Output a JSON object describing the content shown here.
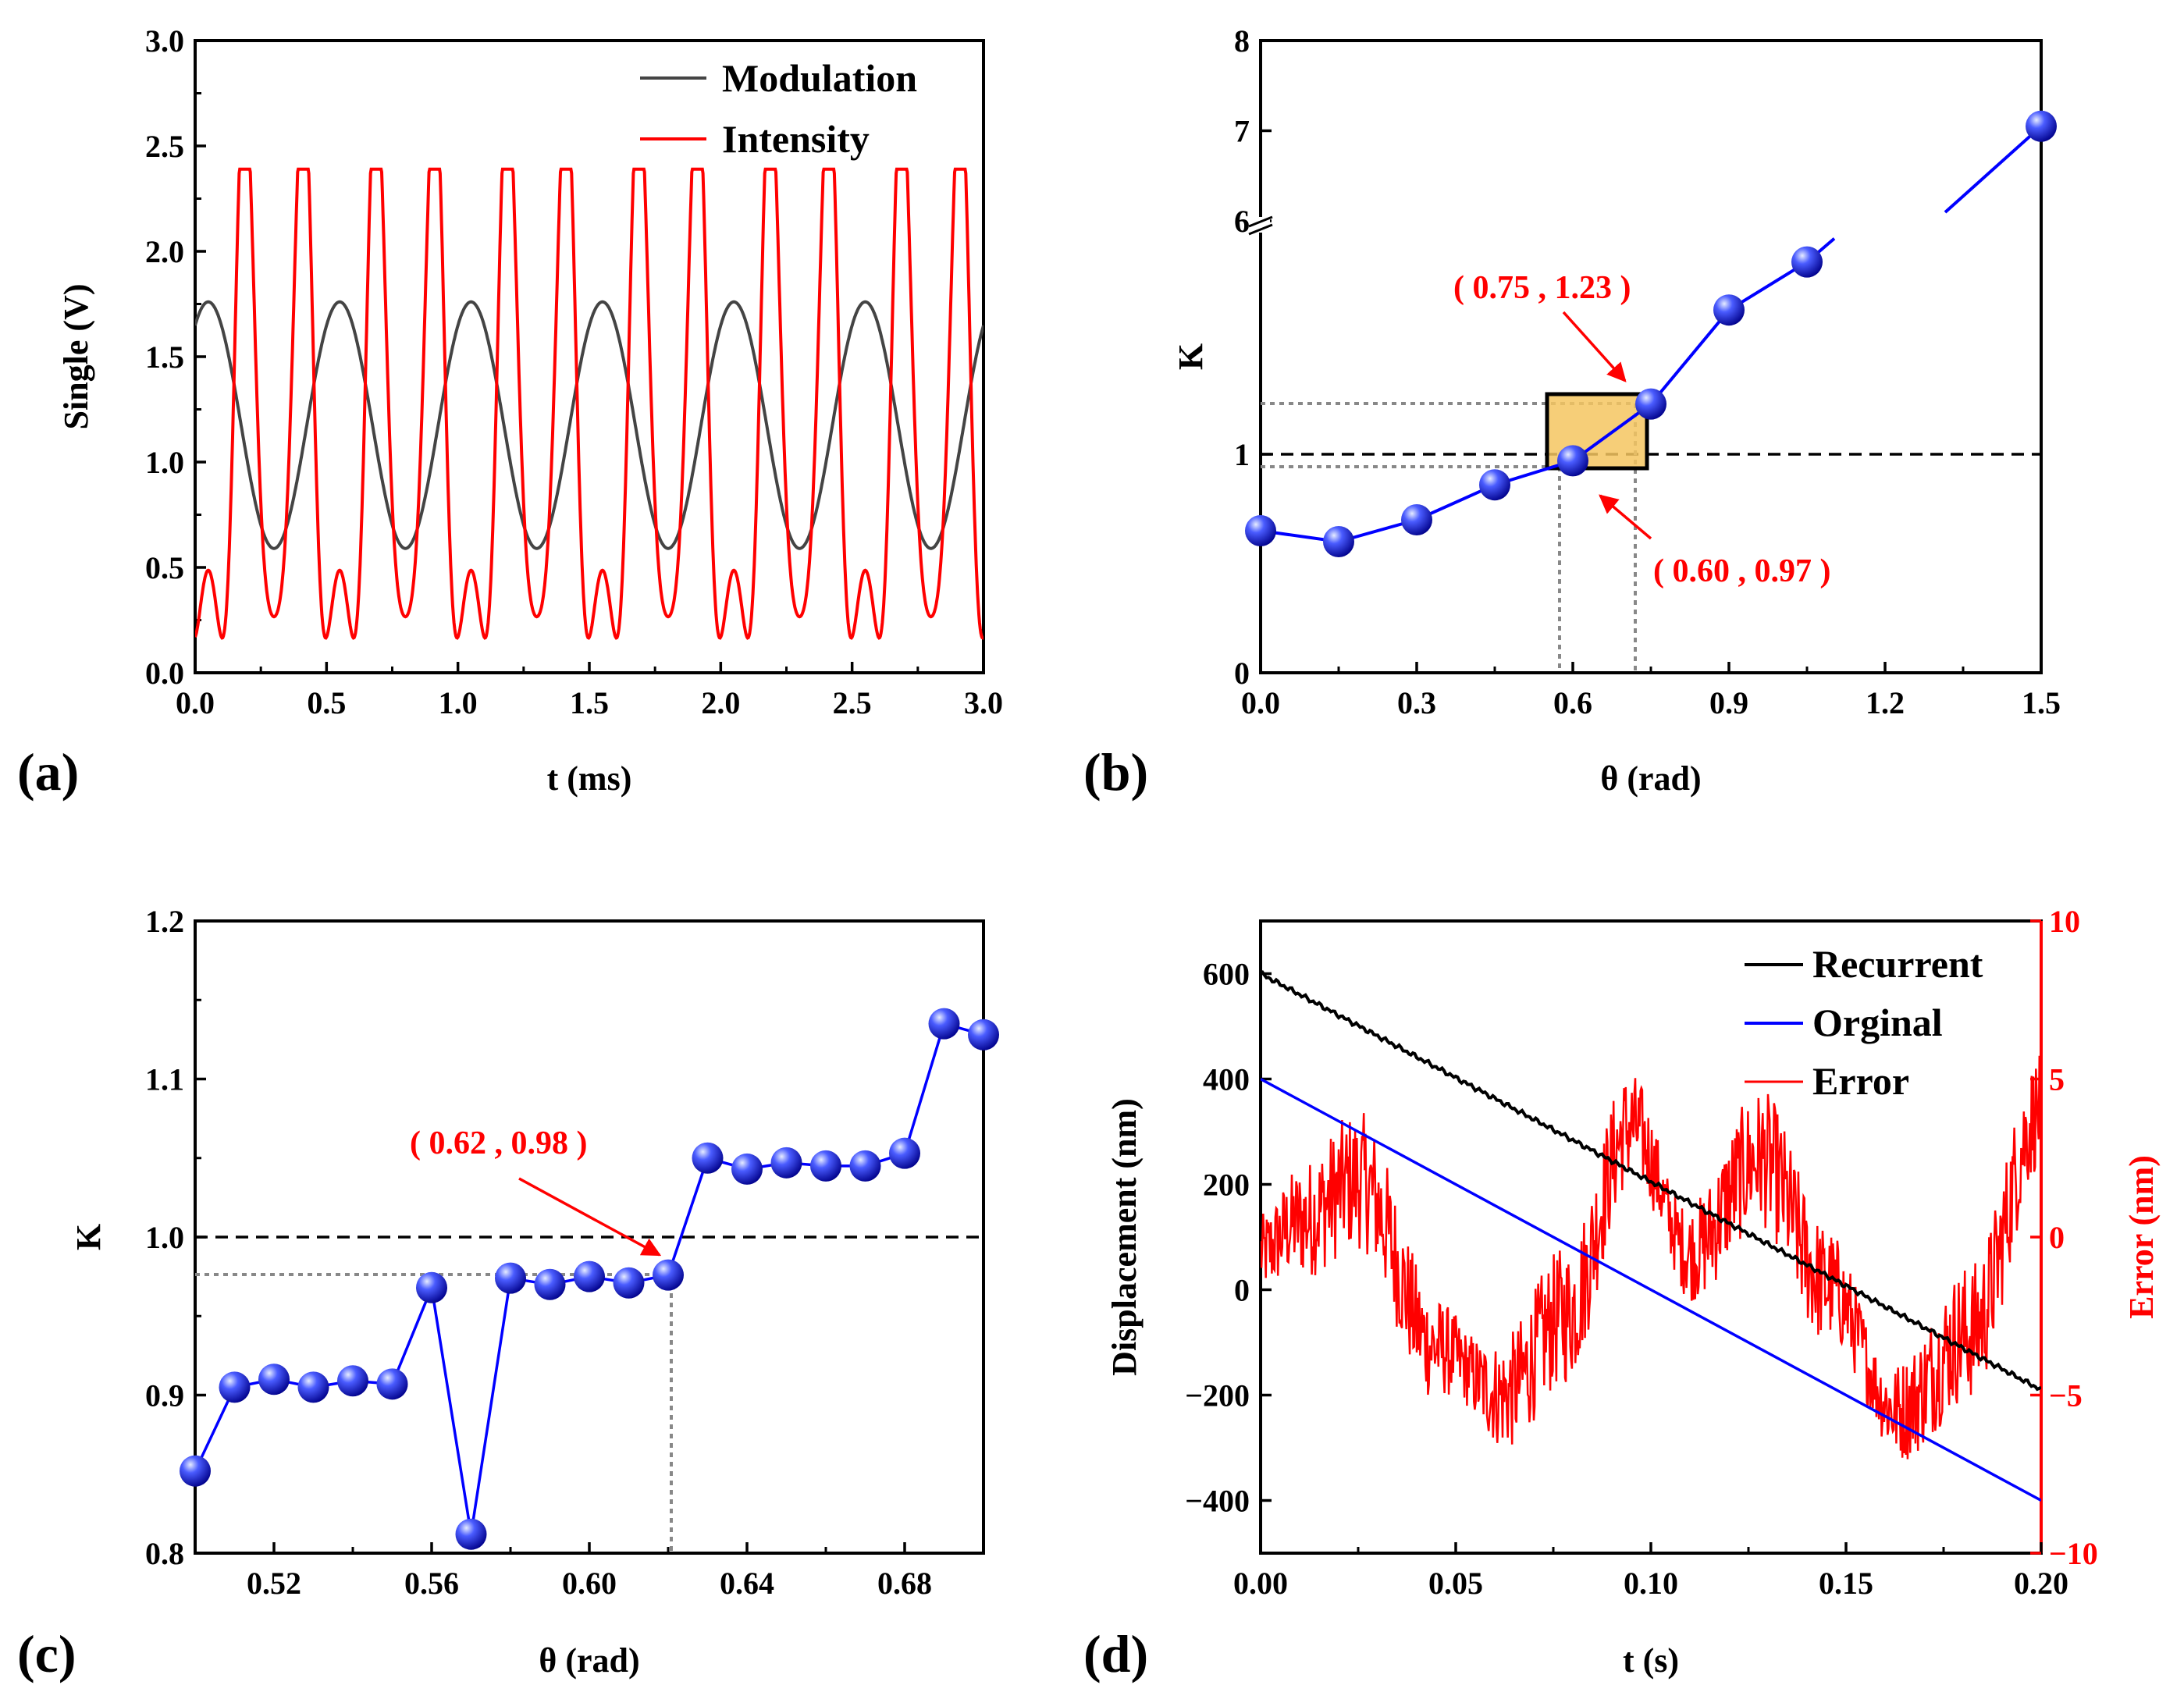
{
  "colors": {
    "black": "#000000",
    "red": "#ff0000",
    "blue": "#0000ff",
    "gray": "#444444",
    "highlight": "#f5c560"
  },
  "chart_data": [
    {
      "panel": "(a)",
      "type": "line",
      "xlabel": "t (ms)",
      "ylabel": "Single (V)",
      "xlim": [
        0,
        3.0
      ],
      "ylim": [
        0,
        3.0
      ],
      "xticks": [
        "0.0",
        "0.5",
        "1.0",
        "1.5",
        "2.0",
        "2.5",
        "3.0"
      ],
      "yticks": [
        "0.0",
        "0.5",
        "1.0",
        "1.5",
        "2.0",
        "2.5",
        "3.0"
      ],
      "legend_position": "top-right",
      "series": [
        {
          "name": "Modulation",
          "color": "#444444",
          "description": "sinusoid",
          "mean": 1.175,
          "amplitude": 0.585,
          "period_ms": 0.5,
          "phase_peak_ms": 0.05
        },
        {
          "name": "Intensity",
          "color": "#ff0000",
          "description": "interference intensity driven by modulation",
          "min": 0.2,
          "max": 2.39,
          "secondary_peak": 0.65
        }
      ]
    },
    {
      "panel": "(b)",
      "type": "scatter",
      "xlabel": "θ (rad)",
      "ylabel": "K",
      "xlim": [
        0,
        1.5
      ],
      "xticks": [
        "0.0",
        "0.3",
        "0.6",
        "0.9",
        "1.2",
        "1.5"
      ],
      "yticks": [
        "0",
        "1",
        "6",
        "7",
        "8"
      ],
      "y_axis_break": "between 1 and 6",
      "reference_line_y": 1,
      "x": [
        0.0,
        0.15,
        0.3,
        0.45,
        0.6,
        0.75,
        0.9,
        1.05,
        1.5
      ],
      "y": [
        0.65,
        0.6,
        0.7,
        0.86,
        0.97,
        1.23,
        1.66,
        1.88,
        7.05
      ],
      "annotations": [
        "( 0.75 , 1.23 )",
        "( 0.60 , 0.97 )"
      ]
    },
    {
      "panel": "(c)",
      "type": "scatter",
      "xlabel": "θ (rad)",
      "ylabel": "K",
      "xlim": [
        0.5,
        0.7
      ],
      "ylim": [
        0.8,
        1.2
      ],
      "xticks": [
        "0.52",
        "0.56",
        "0.60",
        "0.64",
        "0.68"
      ],
      "yticks": [
        "0.8",
        "0.9",
        "1.0",
        "1.1",
        "1.2"
      ],
      "reference_line_y": 1.0,
      "x": [
        0.5,
        0.51,
        0.52,
        0.53,
        0.54,
        0.55,
        0.56,
        0.57,
        0.58,
        0.59,
        0.6,
        0.61,
        0.62,
        0.63,
        0.64,
        0.65,
        0.66,
        0.67,
        0.68,
        0.69,
        0.7
      ],
      "y": [
        0.852,
        0.905,
        0.91,
        0.905,
        0.909,
        0.907,
        0.968,
        0.812,
        0.974,
        0.97,
        0.975,
        0.971,
        0.976,
        1.05,
        1.043,
        1.047,
        1.045,
        1.045,
        1.053,
        1.135,
        1.128
      ],
      "annotations": [
        "( 0.62 , 0.98 )"
      ]
    },
    {
      "panel": "(d)",
      "type": "line",
      "xlabel": "t (s)",
      "ylabel": "Displacement (nm)",
      "y2label": "Error (nm)",
      "xlim": [
        0,
        0.2
      ],
      "ylim": [
        -500,
        700
      ],
      "y2lim": [
        -10,
        10
      ],
      "xticks": [
        "0.00",
        "0.05",
        "0.10",
        "0.15",
        "0.20"
      ],
      "yticks": [
        "−400",
        "−200",
        "0",
        "200",
        "400",
        "600"
      ],
      "y2ticks": [
        "−10",
        "−5",
        "0",
        "5",
        "10"
      ],
      "legend_position": "top-right",
      "series": [
        {
          "name": "Recurrent",
          "color": "#000000",
          "x": [
            0,
            0.2
          ],
          "y": [
            600,
            -190
          ]
        },
        {
          "name": "Orginal",
          "color": "#0000ff",
          "x": [
            0,
            0.2
          ],
          "y": [
            400,
            -400
          ]
        },
        {
          "name": "Error",
          "color": "#ff0000",
          "axis": "right",
          "x": [
            0,
            0.01,
            0.025,
            0.045,
            0.062,
            0.078,
            0.095,
            0.11,
            0.128,
            0.145,
            0.163,
            0.182,
            0.2
          ],
          "y": [
            -0.5,
            0.5,
            1.8,
            -3.5,
            -5,
            -2.5,
            3.5,
            -0.5,
            2.5,
            -1.5,
            -5.5,
            -3,
            4
          ]
        }
      ]
    }
  ]
}
